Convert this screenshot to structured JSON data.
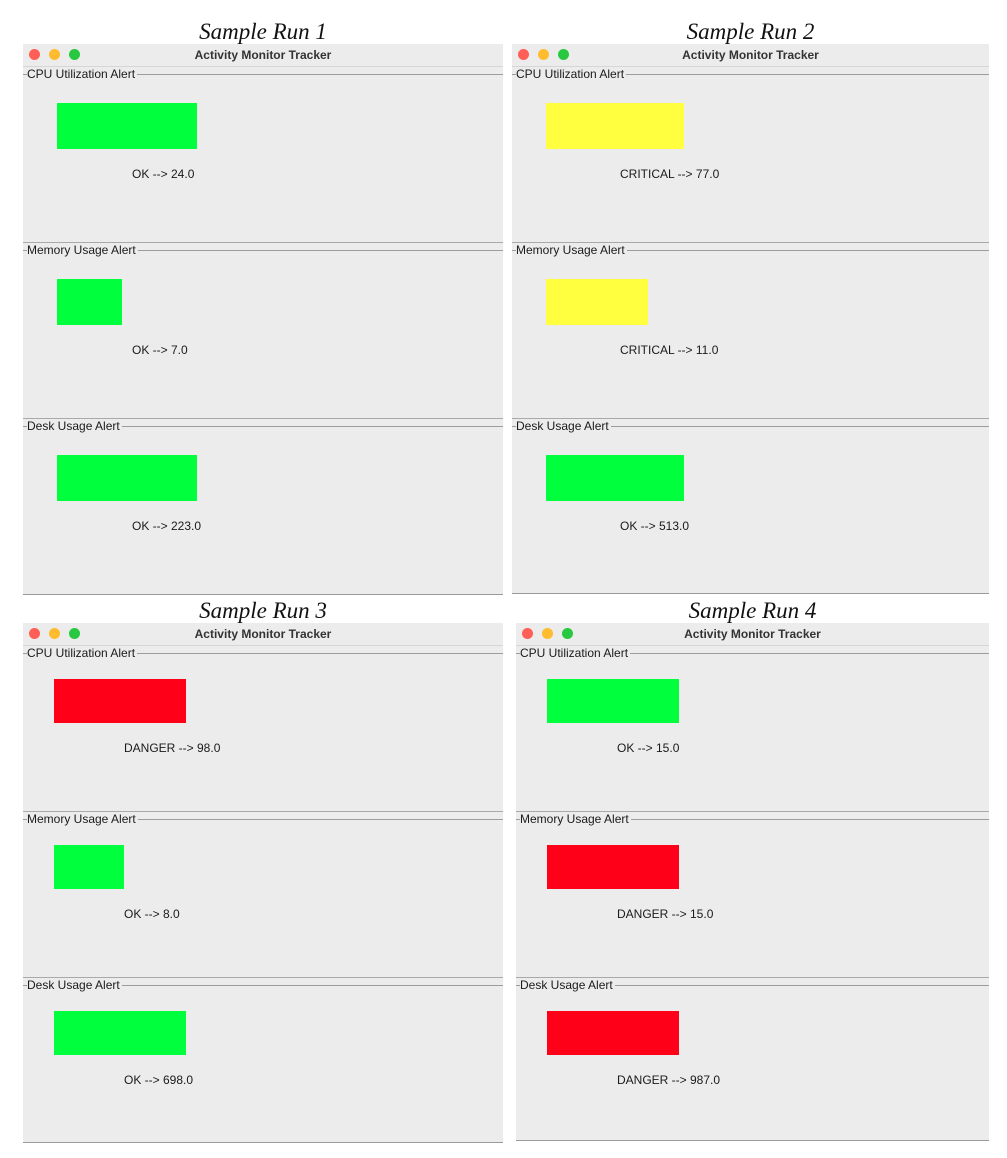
{
  "colors": {
    "ok": "#00ff3c",
    "critical": "#ffff40",
    "danger": "#ff0019"
  },
  "window_title": "Activity Monitor Tracker",
  "runs": [
    {
      "caption": "Sample Run 1",
      "panels": [
        {
          "title": "CPU Utilization Alert",
          "status": "OK",
          "value": "24.0",
          "level": "ok",
          "text": "OK --> 24.0"
        },
        {
          "title": "Memory Usage Alert",
          "status": "OK",
          "value": "7.0",
          "level": "ok",
          "text": "OK --> 7.0"
        },
        {
          "title": "Desk Usage Alert",
          "status": "OK",
          "value": "223.0",
          "level": "ok",
          "text": "OK --> 223.0"
        }
      ]
    },
    {
      "caption": "Sample Run 2",
      "panels": [
        {
          "title": "CPU Utilization Alert",
          "status": "CRITICAL",
          "value": "77.0",
          "level": "critical",
          "text": "CRITICAL --> 77.0"
        },
        {
          "title": "Memory Usage Alert",
          "status": "CRITICAL",
          "value": "11.0",
          "level": "critical",
          "text": "CRITICAL --> 11.0"
        },
        {
          "title": "Desk Usage Alert",
          "status": "OK",
          "value": "513.0",
          "level": "ok",
          "text": "OK --> 513.0"
        }
      ]
    },
    {
      "caption": "Sample Run 3",
      "panels": [
        {
          "title": "CPU Utilization Alert",
          "status": "DANGER",
          "value": "98.0",
          "level": "danger",
          "text": "DANGER --> 98.0"
        },
        {
          "title": "Memory Usage Alert",
          "status": "OK",
          "value": "8.0",
          "level": "ok",
          "text": "OK --> 8.0"
        },
        {
          "title": "Desk Usage Alert",
          "status": "OK",
          "value": "698.0",
          "level": "ok",
          "text": "OK --> 698.0"
        }
      ]
    },
    {
      "caption": "Sample Run 4",
      "panels": [
        {
          "title": "CPU Utilization Alert",
          "status": "OK",
          "value": "15.0",
          "level": "ok",
          "text": "OK --> 15.0"
        },
        {
          "title": "Memory Usage Alert",
          "status": "DANGER",
          "value": "15.0",
          "level": "danger",
          "text": "DANGER --> 15.0"
        },
        {
          "title": "Desk Usage Alert",
          "status": "DANGER",
          "value": "987.0",
          "level": "danger",
          "text": "DANGER --> 987.0"
        }
      ]
    }
  ]
}
